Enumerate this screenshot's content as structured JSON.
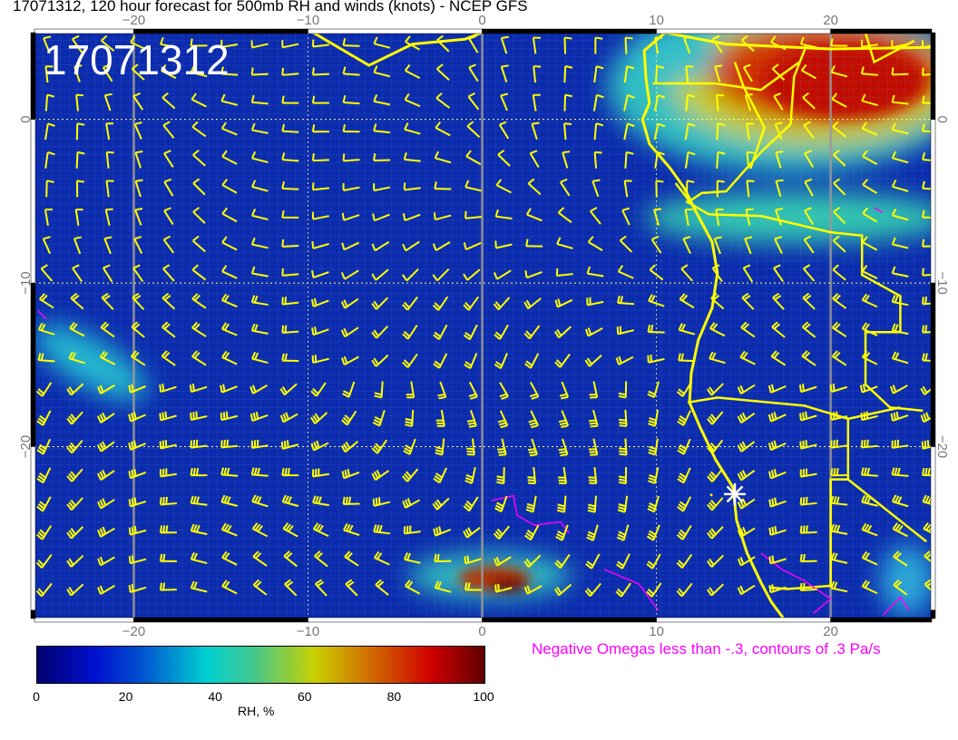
{
  "title": "17071312, 120 hour forecast for 500mb RH and winds (knots) - NCEP GFS",
  "stamp": "17071312",
  "map": {
    "lon_range": [
      -25.7,
      25.8
    ],
    "lat_range": [
      -30.5,
      5.3
    ],
    "lon_ticks": [
      "−20",
      "−10",
      "0",
      "10",
      "20"
    ],
    "lon_tick_values": [
      -20,
      -10,
      0,
      10,
      20
    ],
    "lat_ticks": [
      "0",
      "−10",
      "−20"
    ],
    "lat_tick_values": [
      0,
      -10,
      -20
    ],
    "wind_barb_color": "#ffff00",
    "coastline_color": "#ffff00",
    "omega_contour_color": "#ff00ff",
    "station_marker": {
      "lon": 14.5,
      "lat": -22.9,
      "icon": "white-star-icon"
    }
  },
  "omega_note": "Negative Omegas less than -.3, contours of .3 Pa/s",
  "colorbar": {
    "label": "RH, %",
    "ticks": [
      "0",
      "20",
      "40",
      "60",
      "80",
      "100"
    ],
    "range": [
      0,
      100
    ],
    "colors": [
      "#000070",
      "#0010d0",
      "#00d0d0",
      "#c8d000",
      "#d00000",
      "#600000"
    ]
  }
}
